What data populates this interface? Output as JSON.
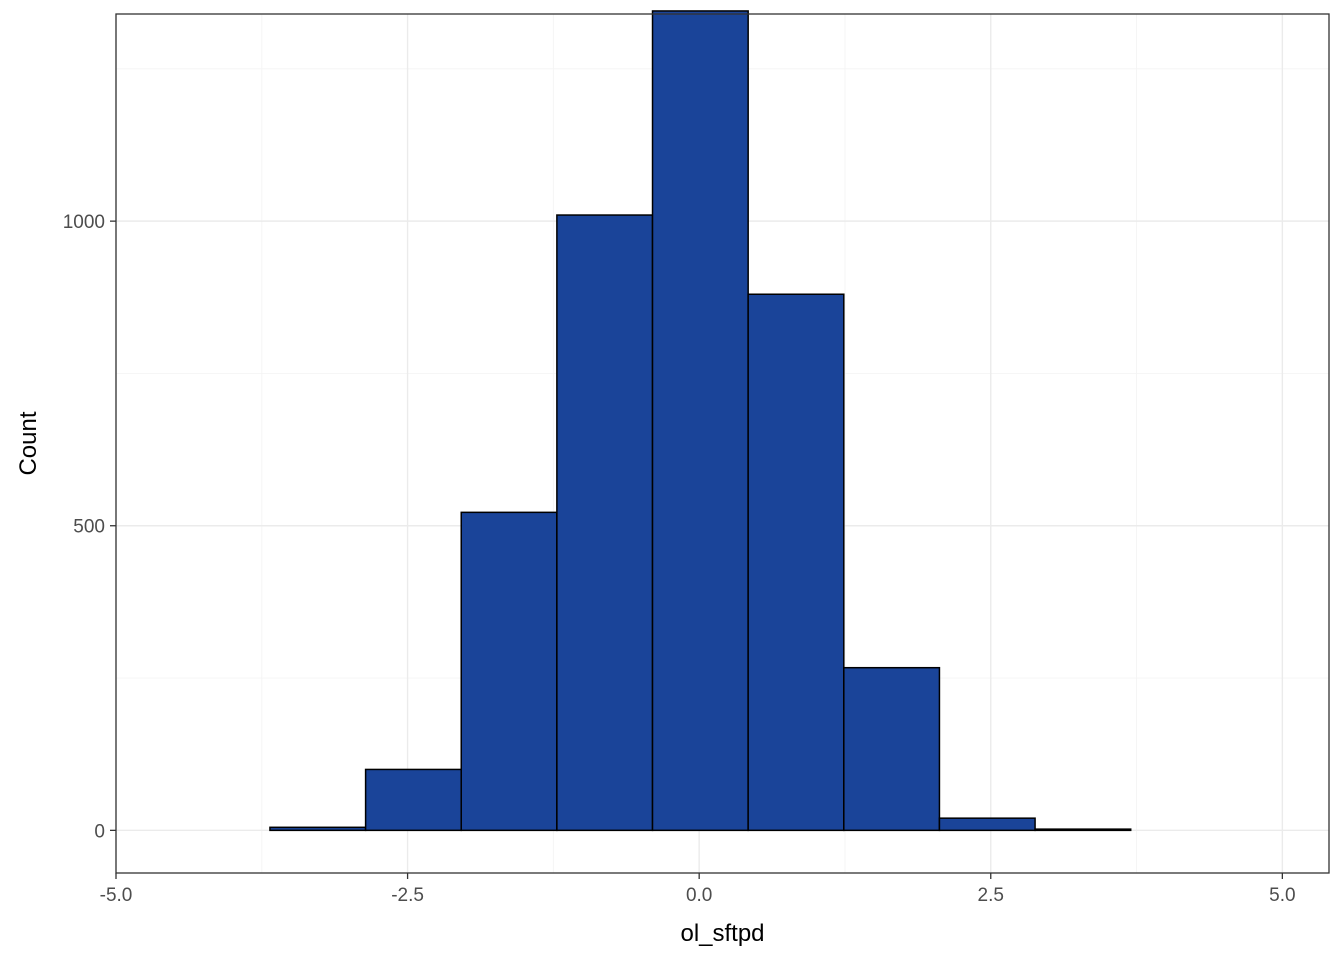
{
  "chart_data": {
    "type": "bar",
    "subtype": "histogram",
    "title": "",
    "xlabel": "ol_sftpd",
    "ylabel": "Count",
    "xlim": [
      -5.0,
      5.4
    ],
    "ylim": [
      -70,
      1340
    ],
    "x_ticks": [
      -5.0,
      -2.5,
      0.0,
      2.5,
      5.0
    ],
    "x_tick_labels": [
      "-5.0",
      "-2.5",
      "0.0",
      "2.5",
      "5.0"
    ],
    "y_ticks": [
      0,
      500,
      1000
    ],
    "y_tick_labels": [
      "0",
      "500",
      "1000"
    ],
    "bins": [
      {
        "x0": -4.5,
        "x1": -3.68,
        "count": 0
      },
      {
        "x0": -3.68,
        "x1": -2.86,
        "count": 5
      },
      {
        "x0": -2.86,
        "x1": -2.04,
        "count": 100
      },
      {
        "x0": -2.04,
        "x1": -1.22,
        "count": 522
      },
      {
        "x0": -1.22,
        "x1": -0.4,
        "count": 1010
      },
      {
        "x0": -0.4,
        "x1": 0.42,
        "count": 1345
      },
      {
        "x0": 0.42,
        "x1": 1.24,
        "count": 880
      },
      {
        "x0": 1.24,
        "x1": 2.06,
        "count": 267
      },
      {
        "x0": 2.06,
        "x1": 2.88,
        "count": 20
      },
      {
        "x0": 2.88,
        "x1": 3.7,
        "count": 2
      },
      {
        "x0": 3.7,
        "x1": 4.52,
        "count": 0
      },
      {
        "x0": 4.52,
        "x1": 5.34,
        "count": 0
      }
    ],
    "grid": true,
    "legend": "none",
    "colors": {
      "fill": "#1A4499",
      "outline": "#000000",
      "panel_border": "#333333",
      "grid": "#ebebeb"
    }
  }
}
